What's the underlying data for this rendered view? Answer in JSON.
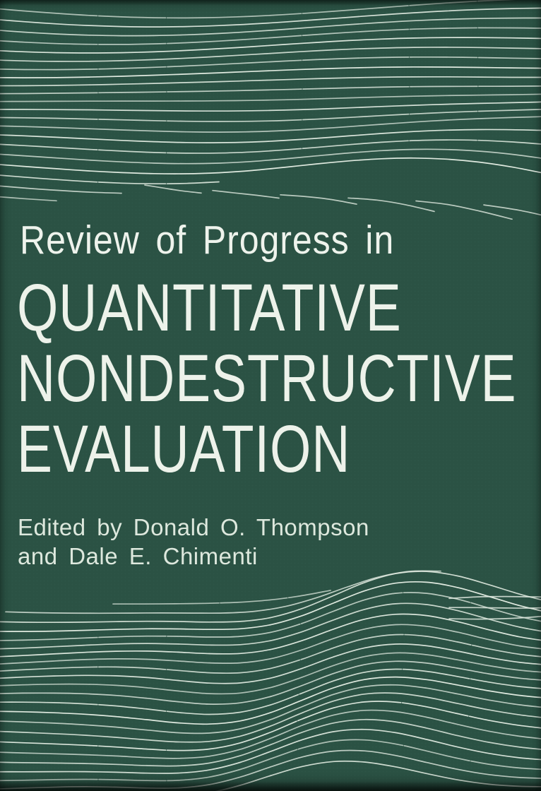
{
  "cover": {
    "kicker": "Review of Progress in",
    "title_lines": [
      "QUANTITATIVE",
      "NONDESTRUCTIVE",
      "EVALUATION"
    ],
    "credit_lines": [
      "Edited by Donald O. Thompson",
      "and Dale E. Chimenti"
    ],
    "colors": {
      "background": "#2b5244",
      "wave_line": "#dfe9df",
      "kicker_text": "#eef3ec",
      "title_text": "#edf2ea",
      "credit_text": "#dde8dd"
    }
  }
}
